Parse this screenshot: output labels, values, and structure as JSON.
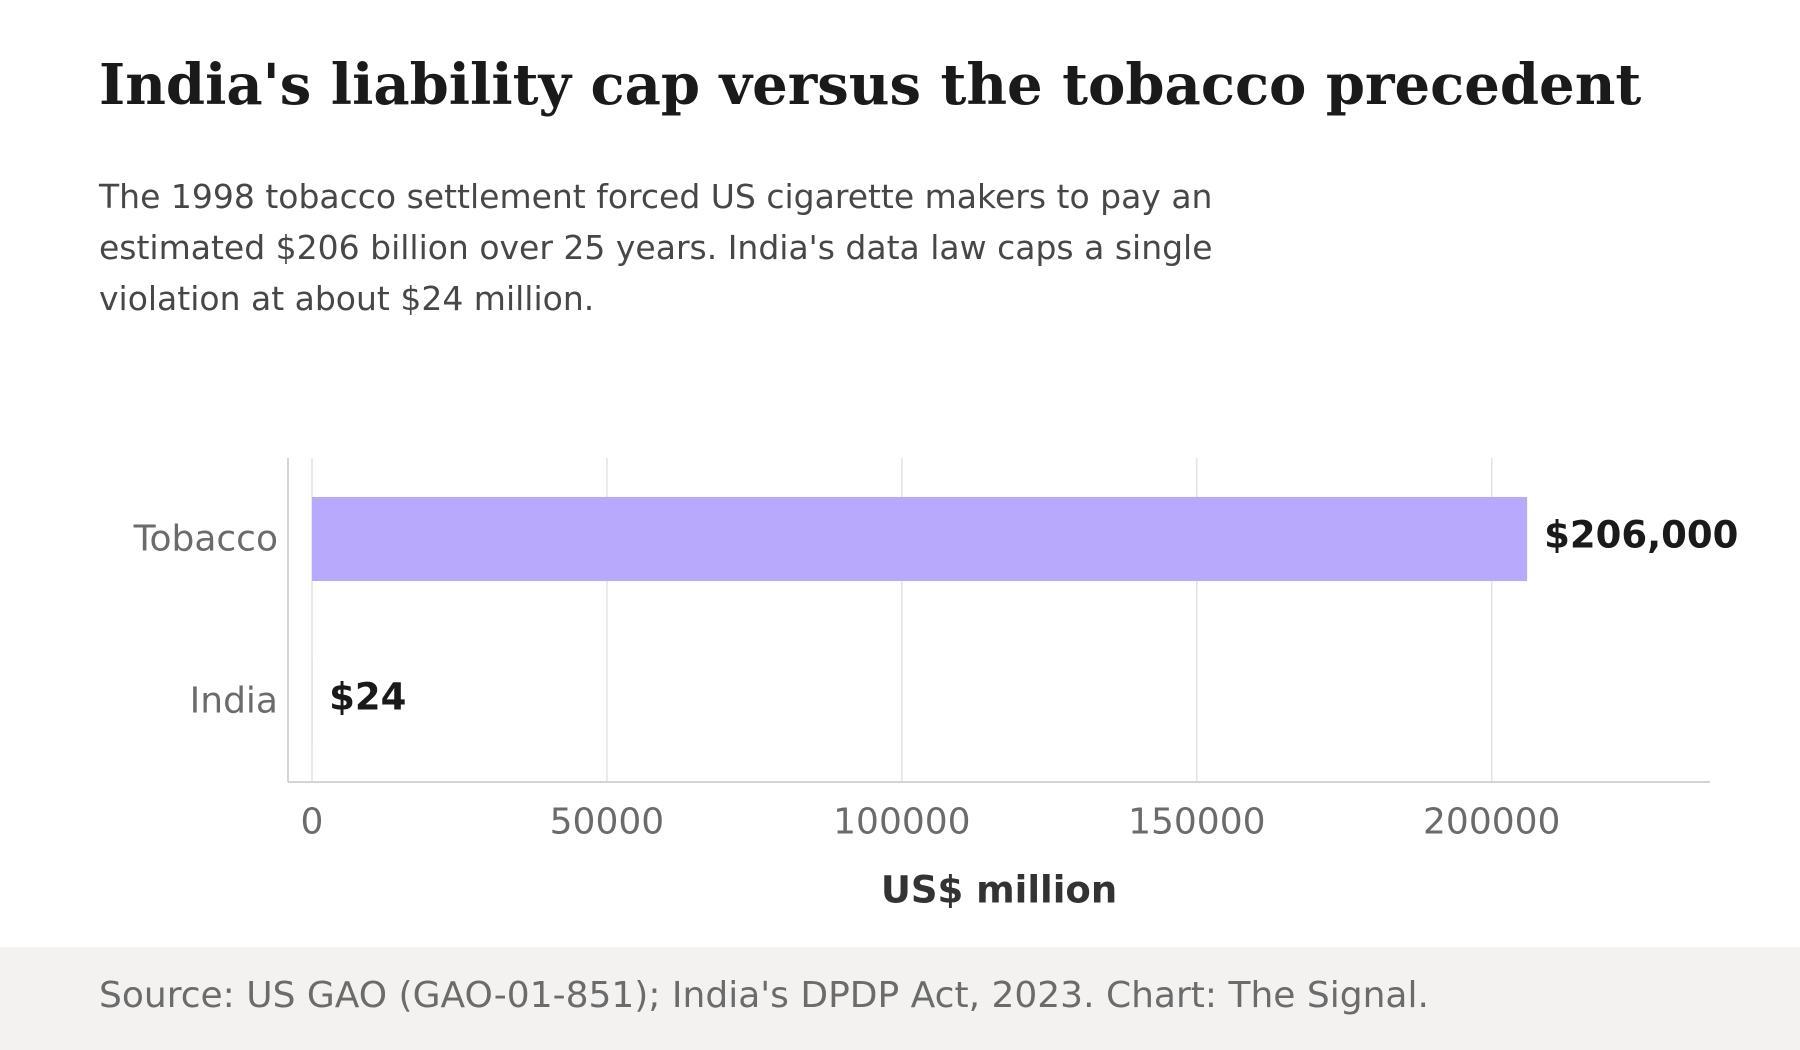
{
  "header": {
    "title": "India's liability cap versus the tobacco precedent",
    "subtitle": "The 1998 tobacco settlement forced US cigarette makers to pay an estimated $206 billion over 25 years. India's data law caps a single violation at about $24 million."
  },
  "chart_data": {
    "type": "bar",
    "orientation": "horizontal",
    "categories": [
      "Tobacco",
      "India"
    ],
    "values": [
      206000,
      24
    ],
    "value_labels": [
      "$206,000",
      "$24"
    ],
    "xlabel": "US$ million",
    "xlim": [
      0,
      237000
    ],
    "xticks": [
      0,
      50000,
      100000,
      150000,
      200000
    ],
    "grid": "vertical",
    "bar_color": "#b8a9fc"
  },
  "footer": {
    "source": "Source: US GAO (GAO-01-851); India's DPDP Act, 2023. Chart: The Signal."
  }
}
